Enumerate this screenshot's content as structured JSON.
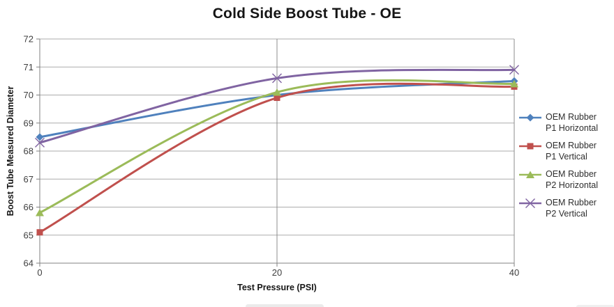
{
  "chart_data": {
    "type": "line",
    "title": "Cold Side Boost Tube - OE",
    "xlabel": "Test Pressure (PSI)",
    "ylabel": "Boost Tube Measured Diameter",
    "x": [
      0,
      20,
      40
    ],
    "x_ticks": [
      "0",
      "20",
      "40"
    ],
    "y_ticks": [
      "64",
      "65",
      "66",
      "67",
      "68",
      "69",
      "70",
      "71",
      "72"
    ],
    "xlim": [
      0,
      40
    ],
    "ylim": [
      64,
      72
    ],
    "grid": true,
    "smooth_lines": true,
    "legend_position": "right",
    "series": [
      {
        "name": "OEM Rubber P1 Horizontal",
        "name_lines": [
          "OEM Rubber",
          "P1 Horizontal"
        ],
        "color": "#4F81BD",
        "marker": "diamond",
        "values": [
          68.5,
          70.0,
          70.5
        ]
      },
      {
        "name": "OEM Rubber P1 Vertical",
        "name_lines": [
          "OEM Rubber",
          "P1 Vertical"
        ],
        "color": "#C0504D",
        "marker": "square",
        "values": [
          65.1,
          69.9,
          70.3
        ]
      },
      {
        "name": "OEM Rubber P2 Horizontal",
        "name_lines": [
          "OEM Rubber",
          "P2 Horizontal"
        ],
        "color": "#9BBB59",
        "marker": "triangle",
        "values": [
          65.8,
          70.1,
          70.4
        ]
      },
      {
        "name": "OEM Rubber P2 Vertical",
        "name_lines": [
          "OEM Rubber",
          "P2 Vertical"
        ],
        "color": "#8064A2",
        "marker": "x",
        "values": [
          68.3,
          70.6,
          70.9
        ]
      }
    ]
  },
  "colors": {
    "gridline_h": "#ABABAB",
    "gridline_v": "#8C8C8C",
    "axis": "#808080",
    "tick_label": "#3F3F3F",
    "title": "#151515"
  }
}
